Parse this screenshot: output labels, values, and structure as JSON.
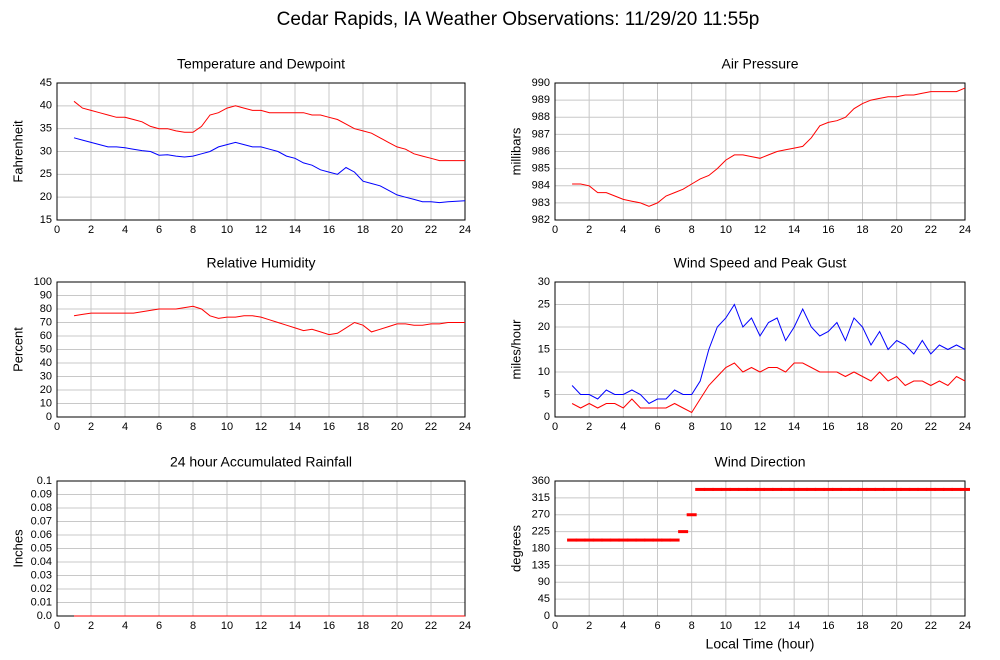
{
  "title": "Cedar Rapids, IA Weather Observations: 11/29/20 11:55p",
  "chart_data": [
    {
      "type": "line",
      "title": "Temperature and Dewpoint",
      "ylabel": "Fahrenheit",
      "x": [
        1,
        1.5,
        2,
        2.5,
        3,
        3.5,
        4,
        4.5,
        5,
        5.5,
        6,
        6.5,
        7,
        7.5,
        8,
        8.5,
        9,
        9.5,
        10,
        10.5,
        11,
        11.5,
        12,
        12.5,
        13,
        13.5,
        14,
        14.5,
        15,
        15.5,
        16,
        16.5,
        17,
        17.5,
        18,
        18.5,
        19,
        19.5,
        20,
        20.5,
        21,
        21.5,
        22,
        22.5,
        23,
        23.5,
        24
      ],
      "series": [
        {
          "color": "#ff0000",
          "values": [
            41,
            39.5,
            39,
            38.5,
            38,
            37.5,
            37.5,
            37,
            36.5,
            35.5,
            35,
            35,
            34.5,
            34.2,
            34.2,
            35.5,
            38,
            38.5,
            39.5,
            40,
            39.5,
            39,
            39,
            38.5,
            38.5,
            38.5,
            38.5,
            38.5,
            38,
            38,
            37.5,
            37,
            36,
            35,
            34.5,
            34,
            33,
            32,
            31,
            30.5,
            29.5,
            29,
            28.5,
            28,
            28,
            28,
            28
          ]
        },
        {
          "color": "#0000ff",
          "values": [
            33,
            32.5,
            32,
            31.5,
            31,
            31,
            30.8,
            30.5,
            30.2,
            30,
            29.2,
            29.3,
            29,
            28.8,
            29,
            29.5,
            30,
            31,
            31.5,
            32,
            31.5,
            31,
            31,
            30.5,
            30,
            29,
            28.5,
            27.5,
            27,
            26,
            25.5,
            25,
            26.5,
            25.5,
            23.5,
            23,
            22.5,
            21.5,
            20.5,
            20,
            19.5,
            19,
            19,
            18.8,
            19,
            19.1,
            19.2
          ]
        }
      ],
      "xlim": [
        0,
        24
      ],
      "xticks": [
        0,
        2,
        4,
        6,
        8,
        10,
        12,
        14,
        16,
        18,
        20,
        22,
        24
      ],
      "ylim": [
        15,
        45
      ],
      "yticks": [
        15,
        20,
        25,
        30,
        35,
        40,
        45
      ],
      "grid": true
    },
    {
      "type": "line",
      "title": "Air Pressure",
      "ylabel": "millibars",
      "x": [
        1,
        1.5,
        2,
        2.5,
        3,
        3.5,
        4,
        4.5,
        5,
        5.5,
        6,
        6.5,
        7,
        7.5,
        8,
        8.5,
        9,
        9.5,
        10,
        10.5,
        11,
        11.5,
        12,
        12.5,
        13,
        13.5,
        14,
        14.5,
        15,
        15.5,
        16,
        16.5,
        17,
        17.5,
        18,
        18.5,
        19,
        19.5,
        20,
        20.5,
        21,
        21.5,
        22,
        22.5,
        23,
        23.5,
        24
      ],
      "series": [
        {
          "color": "#ff0000",
          "values": [
            984.1,
            984.1,
            984,
            983.6,
            983.6,
            983.4,
            983.2,
            983.1,
            983,
            982.8,
            983,
            983.4,
            983.6,
            983.8,
            984.1,
            984.4,
            984.6,
            985,
            985.5,
            985.8,
            985.8,
            985.7,
            985.6,
            985.8,
            986,
            986.1,
            986.2,
            986.3,
            986.8,
            987.5,
            987.7,
            987.8,
            988,
            988.5,
            988.8,
            989,
            989.1,
            989.2,
            989.2,
            989.3,
            989.3,
            989.4,
            989.5,
            989.5,
            989.5,
            989.5,
            989.7
          ]
        }
      ],
      "xlim": [
        0,
        24
      ],
      "xticks": [
        0,
        2,
        4,
        6,
        8,
        10,
        12,
        14,
        16,
        18,
        20,
        22,
        24
      ],
      "ylim": [
        982,
        990
      ],
      "yticks": [
        982,
        983,
        984,
        985,
        986,
        987,
        988,
        989,
        990
      ],
      "grid": true
    },
    {
      "type": "line",
      "title": "Relative Humidity",
      "ylabel": "Percent",
      "x": [
        1,
        1.5,
        2,
        2.5,
        3,
        3.5,
        4,
        4.5,
        5,
        5.5,
        6,
        6.5,
        7,
        7.5,
        8,
        8.5,
        9,
        9.5,
        10,
        10.5,
        11,
        11.5,
        12,
        12.5,
        13,
        13.5,
        14,
        14.5,
        15,
        15.5,
        16,
        16.5,
        17,
        17.5,
        18,
        18.5,
        19,
        19.5,
        20,
        20.5,
        21,
        21.5,
        22,
        22.5,
        23,
        23.5,
        24
      ],
      "series": [
        {
          "color": "#ff0000",
          "values": [
            75,
            76,
            77,
            77,
            77,
            77,
            77,
            77,
            78,
            79,
            80,
            80,
            80,
            81,
            82,
            80,
            75,
            73,
            74,
            74,
            75,
            75,
            74,
            72,
            70,
            68,
            66,
            64,
            65,
            63,
            61,
            62,
            66,
            70,
            68,
            63,
            65,
            67,
            69,
            69,
            68,
            68,
            69,
            69,
            70,
            70,
            70
          ]
        }
      ],
      "xlim": [
        0,
        24
      ],
      "xticks": [
        0,
        2,
        4,
        6,
        8,
        10,
        12,
        14,
        16,
        18,
        20,
        22,
        24
      ],
      "ylim": [
        0,
        100
      ],
      "yticks": [
        0,
        10,
        20,
        30,
        40,
        50,
        60,
        70,
        80,
        90,
        100
      ],
      "grid": true
    },
    {
      "type": "line",
      "title": "Wind Speed and Peak Gust",
      "ylabel": "miles/hour",
      "x": [
        1,
        1.5,
        2,
        2.5,
        3,
        3.5,
        4,
        4.5,
        5,
        5.5,
        6,
        6.5,
        7,
        7.5,
        8,
        8.5,
        9,
        9.5,
        10,
        10.5,
        11,
        11.5,
        12,
        12.5,
        13,
        13.5,
        14,
        14.5,
        15,
        15.5,
        16,
        16.5,
        17,
        17.5,
        18,
        18.5,
        19,
        19.5,
        20,
        20.5,
        21,
        21.5,
        22,
        22.5,
        23,
        23.5,
        24
      ],
      "series": [
        {
          "color": "#0000ff",
          "values": [
            7,
            5,
            5,
            4,
            6,
            5,
            5,
            6,
            5,
            3,
            4,
            4,
            6,
            5,
            5,
            8,
            15,
            20,
            22,
            25,
            20,
            22,
            18,
            21,
            22,
            17,
            20,
            24,
            20,
            18,
            19,
            21,
            17,
            22,
            20,
            16,
            19,
            15,
            17,
            16,
            14,
            17,
            14,
            16,
            15,
            16,
            15
          ]
        },
        {
          "color": "#ff0000",
          "values": [
            3,
            2,
            3,
            2,
            3,
            3,
            2,
            4,
            2,
            2,
            2,
            2,
            3,
            2,
            1,
            4,
            7,
            9,
            11,
            12,
            10,
            11,
            10,
            11,
            11,
            10,
            12,
            12,
            11,
            10,
            10,
            10,
            9,
            10,
            9,
            8,
            10,
            8,
            9,
            7,
            8,
            8,
            7,
            8,
            7,
            9,
            8
          ]
        }
      ],
      "xlim": [
        0,
        24
      ],
      "xticks": [
        0,
        2,
        4,
        6,
        8,
        10,
        12,
        14,
        16,
        18,
        20,
        22,
        24
      ],
      "ylim": [
        0,
        30
      ],
      "yticks": [
        0,
        5,
        10,
        15,
        20,
        25,
        30
      ],
      "grid": true
    },
    {
      "type": "line",
      "title": "24 hour Accumulated Rainfall",
      "ylabel": "Inches",
      "x": [
        1,
        24
      ],
      "series": [
        {
          "color": "#ff0000",
          "values": [
            0,
            0
          ]
        }
      ],
      "xlim": [
        0,
        24
      ],
      "xticks": [
        0,
        2,
        4,
        6,
        8,
        10,
        12,
        14,
        16,
        18,
        20,
        22,
        24
      ],
      "ylim": [
        0,
        0.1
      ],
      "yticks": [
        {
          "value": 0,
          "label": "0.0"
        },
        0.01,
        0.02,
        0.03,
        0.04,
        0.05,
        0.06,
        0.07,
        0.08,
        0.09,
        0.1
      ],
      "grid": true
    },
    {
      "type": "scatter",
      "title": "Wind Direction",
      "ylabel": "degrees",
      "xlabel": "Local Time (hour)",
      "x": [
        1,
        1.5,
        2,
        2.5,
        3,
        3.5,
        4,
        4.5,
        5,
        5.5,
        6,
        6.5,
        7,
        7.5,
        8,
        8.5,
        9,
        9.5,
        10,
        10.5,
        11,
        11.5,
        12,
        12.5,
        13,
        13.5,
        14,
        14.5,
        15,
        15.5,
        16,
        16.5,
        17,
        17.5,
        18,
        18.5,
        19,
        19.5,
        20,
        20.5,
        21,
        21.5,
        22,
        22.5,
        23,
        23.5,
        24
      ],
      "series": [
        {
          "color": "#ff0000",
          "values": [
            202.5,
            202.5,
            202.5,
            202.5,
            202.5,
            202.5,
            202.5,
            202.5,
            202.5,
            202.5,
            202.5,
            202.5,
            202.5,
            225,
            270,
            337.5,
            337.5,
            337.5,
            337.5,
            337.5,
            337.5,
            337.5,
            337.5,
            337.5,
            337.5,
            337.5,
            337.5,
            337.5,
            337.5,
            337.5,
            337.5,
            337.5,
            337.5,
            337.5,
            337.5,
            337.5,
            337.5,
            337.5,
            337.5,
            337.5,
            337.5,
            337.5,
            337.5,
            337.5,
            337.5,
            337.5,
            337.5
          ]
        }
      ],
      "xlim": [
        0,
        24
      ],
      "xticks": [
        0,
        2,
        4,
        6,
        8,
        10,
        12,
        14,
        16,
        18,
        20,
        22,
        24
      ],
      "ylim": [
        0,
        360
      ],
      "yticks": [
        0,
        45,
        90,
        135,
        180,
        225,
        270,
        315,
        360
      ],
      "grid": true
    }
  ]
}
